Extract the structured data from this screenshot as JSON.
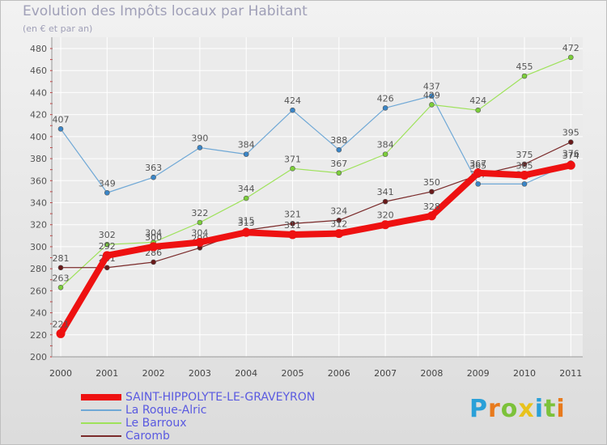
{
  "chart_data": {
    "type": "line",
    "title": "Evolution des Impôts locaux par Habitant",
    "subtitle": "(en € et par an)",
    "xlabel": "",
    "ylabel": "",
    "ylim": [
      200,
      480
    ],
    "yticks": [
      200,
      220,
      240,
      260,
      280,
      300,
      320,
      340,
      360,
      380,
      400,
      420,
      440,
      460,
      480
    ],
    "categories": [
      "2000",
      "2001",
      "2002",
      "2003",
      "2004",
      "2005",
      "2006",
      "2007",
      "2008",
      "2009",
      "2010",
      "2011"
    ],
    "series": [
      {
        "name": "La Roque-Alric",
        "color": "#6fa8d6",
        "marker": "#3a86c8",
        "values": [
          407,
          349,
          363,
          390,
          384,
          424,
          388,
          426,
          437,
          357,
          357,
          376
        ]
      },
      {
        "name": "Le Barroux",
        "color": "#9ee25a",
        "marker": "#7ccf3a",
        "values": [
          263,
          302,
          304,
          322,
          344,
          371,
          367,
          384,
          429,
          424,
          455,
          472
        ]
      },
      {
        "name": "Caromb",
        "color": "#7a2a2a",
        "marker": "#6a1a1a",
        "values": [
          281,
          281,
          286,
          299,
          315,
          321,
          324,
          341,
          350,
          365,
          375,
          395
        ]
      },
      {
        "name": "SAINT-HIPPOLYTE-LE-GRAVEYRON",
        "color": "#ee1111",
        "marker": "#ee1111",
        "values": [
          221,
          292,
          300,
          304,
          313,
          311,
          312,
          320,
          328,
          367,
          365,
          374
        ]
      }
    ],
    "legend_order": [
      "SAINT-HIPPOLYTE-LE-GRAVEYRON",
      "La Roque-Alric",
      "Le Barroux",
      "Caromb"
    ]
  },
  "brand": {
    "letters": [
      "P",
      "r",
      "o",
      "x",
      "i",
      "t",
      "i"
    ],
    "colors": [
      "#2aa0d8",
      "#e87a1c",
      "#7cc23a",
      "#e8c21c",
      "#2aa0d8",
      "#7cc23a",
      "#e87a1c"
    ]
  }
}
